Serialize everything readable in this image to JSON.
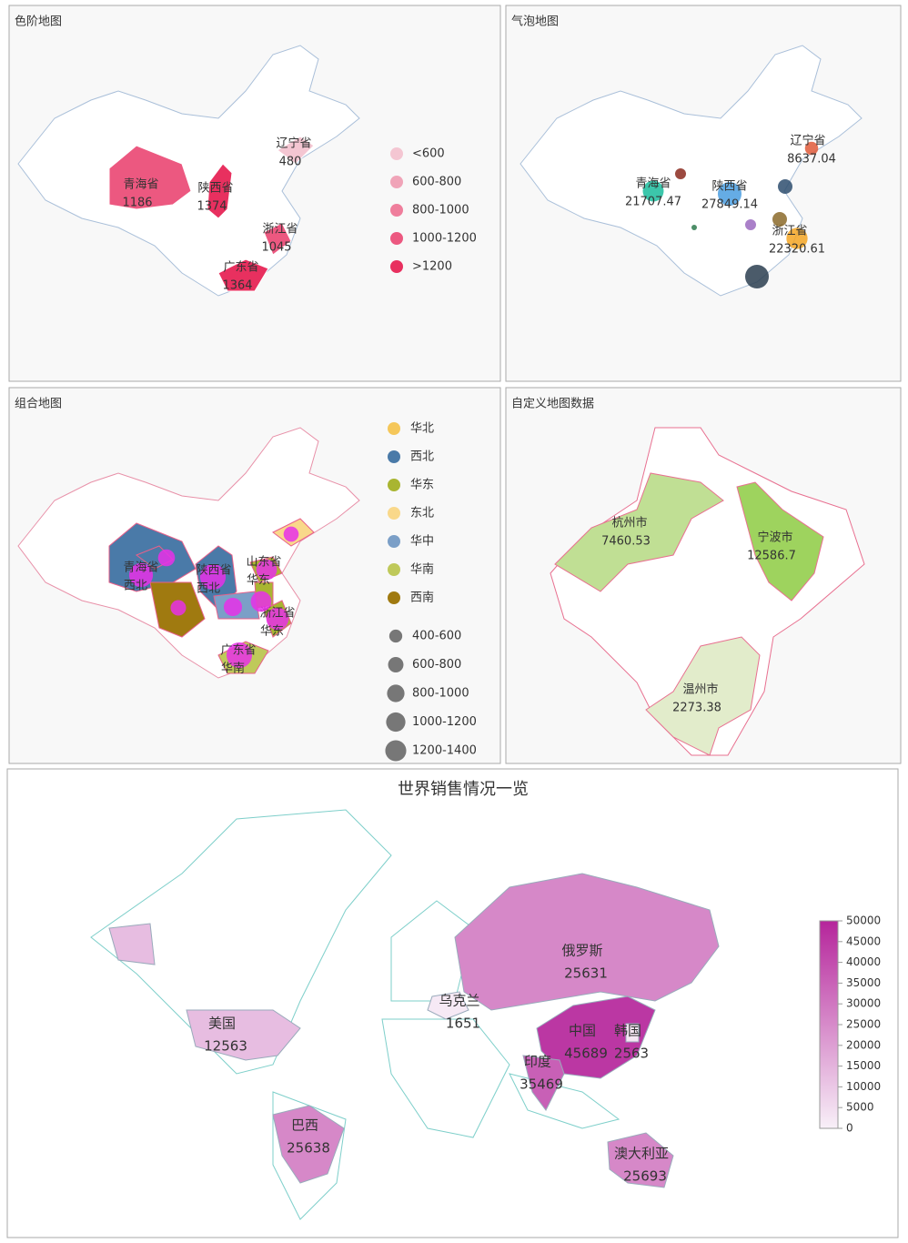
{
  "panels": [
    {
      "title": "色阶地图",
      "regions": [
        {
          "name": "青海省",
          "value": 1186
        },
        {
          "name": "陕西省",
          "value": 1374
        },
        {
          "name": "辽宁省",
          "value": 480
        },
        {
          "name": "浙江省",
          "value": 1045
        },
        {
          "name": "广东省",
          "value": 1364
        }
      ],
      "legend": [
        {
          "label": "<600",
          "max": 600,
          "color": "#f4c6d2"
        },
        {
          "label": "600-800",
          "max": 800,
          "color": "#f0a4b8"
        },
        {
          "label": "800-1000",
          "max": 1000,
          "color": "#ef7e9c"
        },
        {
          "label": "1000-1200",
          "max": 1200,
          "color": "#ec5880"
        },
        {
          "label": ">1200",
          "max": null,
          "color": "#e8305f"
        }
      ]
    },
    {
      "title": "气泡地图",
      "points": [
        {
          "name": "青海省",
          "value": 21707.47,
          "color": "#1abc9c"
        },
        {
          "name": "陕西省",
          "value": 27849.14,
          "color": "#4a9ee0"
        },
        {
          "name": "辽宁省",
          "value": 8637.04,
          "color": "#e05a3a"
        },
        {
          "name": "浙江省",
          "value": 22320.61,
          "color": "#f5a623"
        },
        {
          "name": null,
          "value": 5917,
          "color": "#8b2a1f"
        },
        {
          "name": null,
          "value": 10519,
          "color": "#2e4d6e"
        },
        {
          "name": null,
          "value": 10519,
          "color": "#8b6a2a"
        },
        {
          "name": null,
          "value": 5917,
          "color": "#9b6abf"
        },
        {
          "name": null,
          "value": 1479,
          "color": "#2e7a4e"
        },
        {
          "name": null,
          "value": 27778,
          "color": "#2c3e50"
        }
      ]
    },
    {
      "title": "组合地图",
      "groups": [
        {
          "name": "华北",
          "color": "#f5c75a"
        },
        {
          "name": "西北",
          "color": "#4a7aa8"
        },
        {
          "name": "华东",
          "color": "#a9b531"
        },
        {
          "name": "东北",
          "color": "#f9d88a"
        },
        {
          "name": "华中",
          "color": "#7b9fc7"
        },
        {
          "name": "华南",
          "color": "#bfc95a"
        },
        {
          "name": "西南",
          "color": "#a07a10"
        }
      ],
      "sizes": [
        {
          "label": "400-600",
          "value": 500
        },
        {
          "label": "600-800",
          "value": 700
        },
        {
          "label": "800-1000",
          "value": 900
        },
        {
          "label": "1000-1200",
          "value": 1100
        },
        {
          "label": "1200-1400",
          "value": 1300
        }
      ],
      "regions": [
        {
          "name": "青海省",
          "group": "西北",
          "value": 1186
        },
        {
          "name": "陕西省",
          "group": "西北",
          "value": 1374
        },
        {
          "name": "山东省",
          "group": "华东",
          "value": 900
        },
        {
          "name": "浙江省",
          "group": "华东",
          "value": 1045
        },
        {
          "name": "广东省",
          "group": "华南",
          "value": 1364
        },
        {
          "name": null,
          "group": "东北",
          "value": 480
        },
        {
          "name": null,
          "group": "西南",
          "value": 500
        },
        {
          "name": null,
          "group": "华中",
          "value": 700
        },
        {
          "name": null,
          "group": "华东",
          "value": 900
        },
        {
          "name": null,
          "group": "西北",
          "value": 600
        }
      ]
    },
    {
      "title": "自定义地图数据",
      "regions": [
        {
          "name": "杭州市",
          "value": 7460.53
        },
        {
          "name": "宁波市",
          "value": 12586.7
        },
        {
          "name": "温州市",
          "value": 2273.38
        }
      ]
    },
    {
      "title": "世界销售情况一览",
      "countries": [
        {
          "name": "俄罗斯",
          "value": 25631
        },
        {
          "name": "乌克兰",
          "value": 1651
        },
        {
          "name": "美国",
          "value": 12563
        },
        {
          "name": "中国",
          "value": 45689
        },
        {
          "name": "韩国",
          "value": 2563
        },
        {
          "name": "印度",
          "value": 35469
        },
        {
          "name": "巴西",
          "value": 25638
        },
        {
          "name": "澳大利亚",
          "value": 25693
        }
      ],
      "vlim": [
        0,
        50000
      ],
      "vticks": [
        0,
        5000,
        10000,
        15000,
        20000,
        25000,
        30000,
        35000,
        40000,
        45000,
        50000
      ]
    }
  ]
}
